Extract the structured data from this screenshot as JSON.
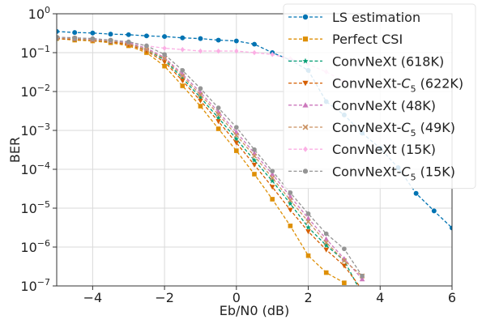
{
  "chart_data": {
    "type": "line",
    "xlabel": "Eb/N0 (dB)",
    "ylabel": "BER",
    "x_scale": "linear",
    "y_scale": "log",
    "xlim": [
      -5,
      6
    ],
    "ylim": [
      1e-07,
      1
    ],
    "x_ticks": [
      -4,
      -2,
      0,
      2,
      4,
      6
    ],
    "x_tick_labels": [
      "−4",
      "−2",
      "0",
      "2",
      "4",
      "6"
    ],
    "y_ticks": [
      1,
      0.1,
      0.01,
      0.001,
      0.0001,
      1e-05,
      1e-06,
      1e-07
    ],
    "y_tick_base": [
      "10",
      "10",
      "10",
      "10",
      "10",
      "10",
      "10",
      "10"
    ],
    "y_tick_exp": [
      "0",
      "−1",
      "−2",
      "−3",
      "−4",
      "−5",
      "−6",
      "−7"
    ],
    "grid": true,
    "legend_position": "top-right",
    "series": [
      {
        "name": "LS estimation",
        "color": "#0173b2",
        "marker": "circle",
        "x": [
          -5,
          -4.5,
          -4,
          -3.5,
          -3,
          -2.5,
          -2,
          -1.5,
          -1,
          -0.5,
          0,
          0.5,
          1,
          1.5,
          2,
          2.5,
          3,
          3.5,
          4,
          4.5,
          5,
          5.5,
          6
        ],
        "y": [
          0.35,
          0.33,
          0.32,
          0.3,
          0.29,
          0.27,
          0.26,
          0.24,
          0.23,
          0.21,
          0.2,
          0.165,
          0.1,
          0.065,
          0.035,
          0.0055,
          0.0025,
          0.00085,
          0.00035,
          0.00011,
          2.4e-05,
          8.5e-06,
          3.1e-06
        ]
      },
      {
        "name": "Perfect CSI",
        "color": "#de8f05",
        "marker": "square",
        "x": [
          -5,
          -4.5,
          -4,
          -3.5,
          -3,
          -2.5,
          -2,
          -1.5,
          -1,
          -0.5,
          0,
          0.5,
          1,
          1.5,
          2,
          2.5,
          3
        ],
        "y": [
          0.23,
          0.21,
          0.2,
          0.18,
          0.15,
          0.1,
          0.045,
          0.014,
          0.0042,
          0.0011,
          0.0003,
          7.5e-05,
          1.7e-05,
          3.5e-06,
          6e-07,
          2.2e-07,
          1.2e-07
        ]
      },
      {
        "name": "ConvNeXt (618K)",
        "color": "#029e73",
        "marker": "star",
        "x": [
          -5,
          -4.5,
          -4,
          -3.5,
          -3,
          -2.5,
          -2,
          -1.5,
          -1,
          -0.5,
          0,
          0.5,
          1,
          1.5,
          2,
          2.5,
          3,
          3.5
        ],
        "y": [
          0.23,
          0.22,
          0.21,
          0.19,
          0.17,
          0.12,
          0.065,
          0.022,
          0.007,
          0.0021,
          0.0006,
          0.00017,
          5e-05,
          1.3e-05,
          3.2e-06,
          1.1e-06,
          4.5e-07,
          6e-08
        ]
      },
      {
        "name": "ConvNeXt-C5 (622K)",
        "color": "#d55e00",
        "marker": "triangle-down",
        "x": [
          -5,
          -4.5,
          -4,
          -3.5,
          -3,
          -2.5,
          -2,
          -1.5,
          -1,
          -0.5,
          0,
          0.5,
          1,
          1.5,
          2,
          2.5,
          3,
          3.5
        ],
        "y": [
          0.23,
          0.22,
          0.21,
          0.19,
          0.16,
          0.11,
          0.058,
          0.019,
          0.0058,
          0.0017,
          0.00048,
          0.00013,
          3.5e-05,
          9e-06,
          2.5e-06,
          8.5e-07,
          3.3e-07,
          8e-08
        ]
      },
      {
        "name": "ConvNeXt (48K)",
        "color": "#cc78bc",
        "marker": "triangle-up",
        "x": [
          -5,
          -4.5,
          -4,
          -3.5,
          -3,
          -2.5,
          -2,
          -1.5,
          -1,
          -0.5,
          0,
          0.5,
          1,
          1.5,
          2,
          2.5,
          3,
          3.5
        ],
        "y": [
          0.24,
          0.23,
          0.22,
          0.2,
          0.18,
          0.13,
          0.075,
          0.028,
          0.0095,
          0.003,
          0.0009,
          0.00026,
          7.5e-05,
          2e-05,
          5.5e-06,
          1.6e-06,
          5e-07,
          1.5e-07
        ]
      },
      {
        "name": "ConvNeXt-C5 (49K)",
        "color": "#ca9161",
        "marker": "x",
        "x": [
          -5,
          -4.5,
          -4,
          -3.5,
          -3,
          -2.5,
          -2,
          -1.5,
          -1,
          -0.5,
          0,
          0.5,
          1,
          1.5,
          2,
          2.5,
          3,
          3.5
        ],
        "y": [
          0.24,
          0.23,
          0.21,
          0.2,
          0.17,
          0.12,
          0.07,
          0.025,
          0.0082,
          0.0026,
          0.00075,
          0.00022,
          6e-05,
          1.6e-05,
          4.5e-06,
          1.3e-06,
          4.5e-07,
          1.8e-07
        ]
      },
      {
        "name": "ConvNeXt (15K)",
        "color": "#fbafe4",
        "marker": "diamond",
        "x": [
          -5,
          -4.5,
          -4,
          -3.5,
          -3,
          -2.5,
          -2,
          -1.5,
          -1,
          -0.5,
          0,
          0.5,
          1,
          1.5,
          2,
          2.5,
          3
        ],
        "y": [
          0.25,
          0.24,
          0.23,
          0.21,
          0.19,
          0.15,
          0.13,
          0.12,
          0.11,
          0.11,
          0.11,
          0.1,
          0.09,
          0.07,
          0.05,
          0.032,
          0.018
        ]
      },
      {
        "name": "ConvNeXt-C5 (15K)",
        "color": "#949494",
        "marker": "octagon",
        "x": [
          -5,
          -4.5,
          -4,
          -3.5,
          -3,
          -2.5,
          -2,
          -1.5,
          -1,
          -0.5,
          0,
          0.5,
          1,
          1.5,
          2,
          2.5,
          3,
          3.5
        ],
        "y": [
          0.25,
          0.24,
          0.23,
          0.21,
          0.19,
          0.15,
          0.09,
          0.035,
          0.012,
          0.0038,
          0.0012,
          0.00032,
          9e-05,
          2.5e-05,
          7.2e-06,
          2.2e-06,
          9e-07,
          1.8e-07
        ]
      }
    ]
  }
}
